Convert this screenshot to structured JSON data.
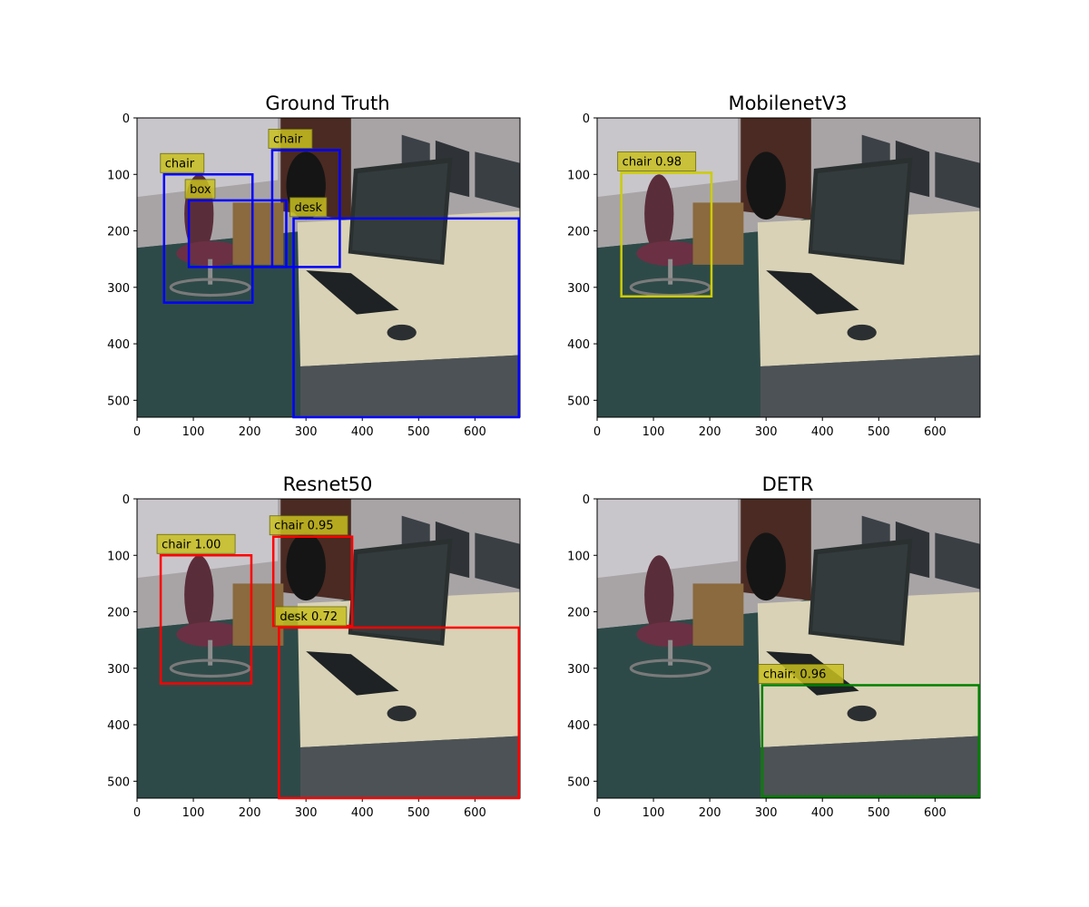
{
  "figure": {
    "width": 1200,
    "height": 1000
  },
  "chart_data": [
    {
      "type": "image-detection",
      "title": "Ground Truth",
      "xlim": [
        0,
        680
      ],
      "ylim": [
        530,
        0
      ],
      "xticks": [
        0,
        100,
        200,
        300,
        400,
        500,
        600
      ],
      "yticks": [
        0,
        100,
        200,
        300,
        400,
        500
      ],
      "box_color": "#0000ff",
      "boxes": [
        {
          "label": "chair",
          "x0": 48,
          "y0": 100,
          "x1": 205,
          "y1": 327
        },
        {
          "label": "box",
          "x0": 92,
          "y0": 146,
          "x1": 265,
          "y1": 264
        },
        {
          "label": "chair",
          "x0": 240,
          "y0": 57,
          "x1": 360,
          "y1": 264
        },
        {
          "label": "desk",
          "x0": 278,
          "y0": 178,
          "x1": 678,
          "y1": 530
        }
      ]
    },
    {
      "type": "image-detection",
      "title": "MobilenetV3",
      "xlim": [
        0,
        680
      ],
      "ylim": [
        530,
        0
      ],
      "xticks": [
        0,
        100,
        200,
        300,
        400,
        500,
        600
      ],
      "yticks": [
        0,
        100,
        200,
        300,
        400,
        500
      ],
      "box_color": "#cccc00",
      "boxes": [
        {
          "label": "chair 0.98",
          "x0": 43,
          "y0": 97,
          "x1": 203,
          "y1": 316
        }
      ]
    },
    {
      "type": "image-detection",
      "title": "Resnet50",
      "xlim": [
        0,
        680
      ],
      "ylim": [
        530,
        0
      ],
      "xticks": [
        0,
        100,
        200,
        300,
        400,
        500,
        600
      ],
      "yticks": [
        0,
        100,
        200,
        300,
        400,
        500
      ],
      "box_color": "#ff0000",
      "boxes": [
        {
          "label": "chair 1.00",
          "x0": 42,
          "y0": 100,
          "x1": 203,
          "y1": 327
        },
        {
          "label": "chair 0.95",
          "x0": 242,
          "y0": 67,
          "x1": 382,
          "y1": 225
        },
        {
          "label": "desk 0.72",
          "x0": 252,
          "y0": 228,
          "x1": 678,
          "y1": 530
        }
      ]
    },
    {
      "type": "image-detection",
      "title": "DETR",
      "xlim": [
        0,
        680
      ],
      "ylim": [
        530,
        0
      ],
      "xticks": [
        0,
        100,
        200,
        300,
        400,
        500,
        600
      ],
      "yticks": [
        0,
        100,
        200,
        300,
        400,
        500
      ],
      "box_color": "#008000",
      "boxes": [
        {
          "label": "chair: 0.96",
          "x0": 293,
          "y0": 330,
          "x1": 678,
          "y1": 527
        }
      ]
    }
  ]
}
